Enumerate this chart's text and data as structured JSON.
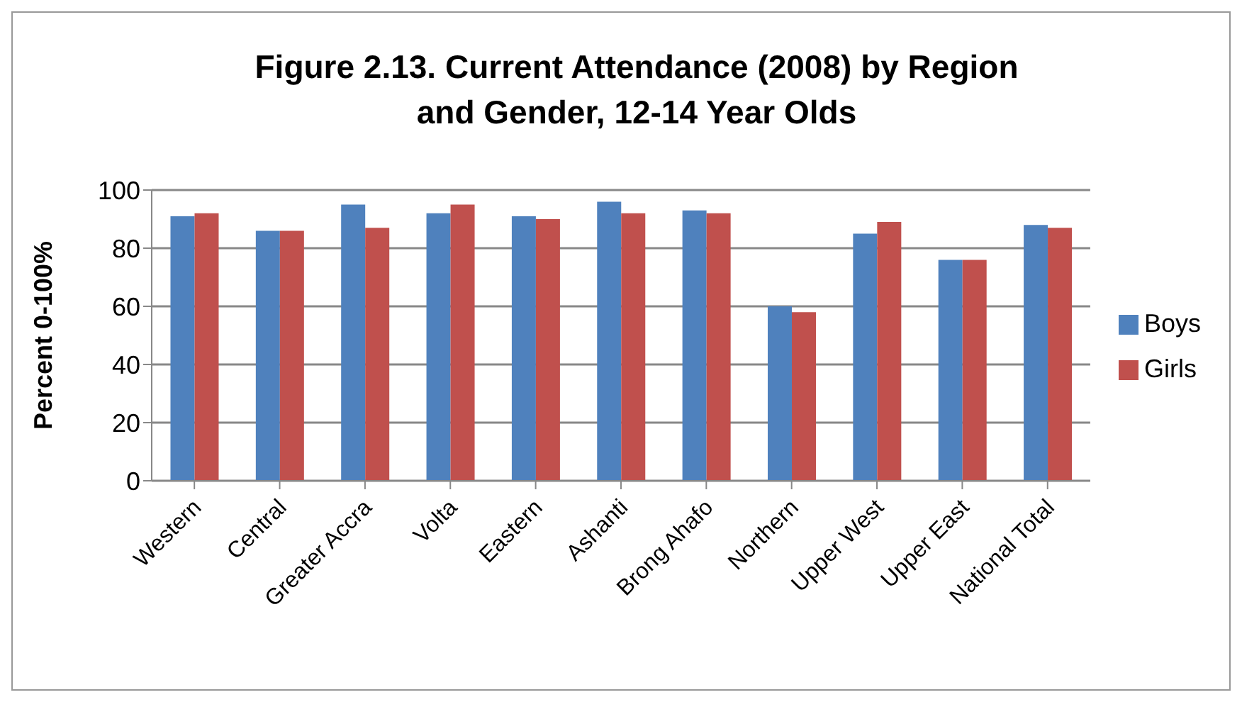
{
  "chart_data": {
    "type": "bar",
    "title": "Figure 2.13.  Current Attendance (2008) by Region and Gender, 12-14 Year Olds",
    "ylabel": "Percent 0-100%",
    "categories": [
      "Western",
      "Central",
      "Greater Accra",
      "Volta",
      "Eastern",
      "Ashanti",
      "Brong Ahafo",
      "Northern",
      "Upper West",
      "Upper East",
      "National Total"
    ],
    "series": [
      {
        "name": "Boys",
        "color": "#4f81bd",
        "values": [
          91,
          86,
          95,
          92,
          91,
          96,
          93,
          60,
          85,
          76,
          88
        ]
      },
      {
        "name": "Girls",
        "color": "#c0504d",
        "values": [
          92,
          86,
          87,
          95,
          90,
          92,
          92,
          58,
          89,
          76,
          87
        ]
      }
    ],
    "ylim": [
      0,
      100
    ],
    "yticks": [
      0,
      20,
      40,
      60,
      80,
      100
    ],
    "grid": "y",
    "legend": "right"
  }
}
